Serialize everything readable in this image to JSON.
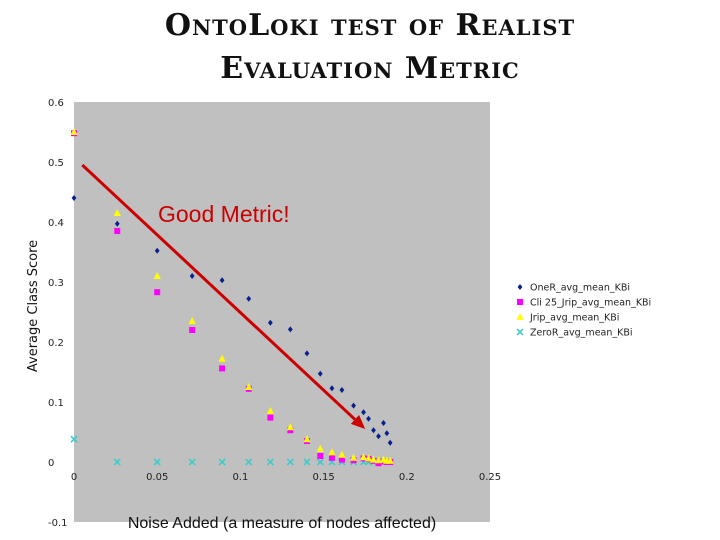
{
  "title": {
    "line1": "OntoLoki test of Realist",
    "line2": "Evaluation Metric"
  },
  "chart_data": {
    "type": "scatter",
    "title": "OntoLoki test of Realist Evaluation Metric",
    "xlabel": "Noise Added (a measure of nodes affected)",
    "ylabel": "Average Class Score",
    "xlim": [
      0,
      0.25
    ],
    "ylim": [
      -0.1,
      0.6
    ],
    "x_ticks": [
      "0",
      "0.05",
      "0.1",
      "0.15",
      "0.2",
      "0.25"
    ],
    "y_ticks": [
      "-0.1",
      "0",
      "0.1",
      "0.2",
      "0.3",
      "0.4",
      "0.5",
      "0.6"
    ],
    "grid": false,
    "plot_background": "#c0c0c0",
    "legend_position": "right",
    "series": [
      {
        "name": "OneR_avg_mean_KBi",
        "marker": "diamond",
        "color": "#0a1f8f",
        "points": [
          [
            0,
            0.44
          ],
          [
            0.026,
            0.397
          ],
          [
            0.05,
            0.352
          ],
          [
            0.071,
            0.31
          ],
          [
            0.089,
            0.303
          ],
          [
            0.105,
            0.272
          ],
          [
            0.118,
            0.232
          ],
          [
            0.13,
            0.221
          ],
          [
            0.14,
            0.181
          ],
          [
            0.148,
            0.147
          ],
          [
            0.155,
            0.123
          ],
          [
            0.161,
            0.12
          ],
          [
            0.168,
            0.094
          ],
          [
            0.174,
            0.083
          ],
          [
            0.177,
            0.072
          ],
          [
            0.18,
            0.053
          ],
          [
            0.183,
            0.043
          ],
          [
            0.186,
            0.065
          ],
          [
            0.188,
            0.048
          ],
          [
            0.19,
            0.032
          ]
        ]
      },
      {
        "name": "Cli 25_Jrip_avg_mean_KBi",
        "marker": "square",
        "color": "#ff00ff",
        "points": [
          [
            0,
            0.548
          ],
          [
            0.026,
            0.385
          ],
          [
            0.05,
            0.283
          ],
          [
            0.071,
            0.22
          ],
          [
            0.089,
            0.156
          ],
          [
            0.105,
            0.122
          ],
          [
            0.118,
            0.074
          ],
          [
            0.13,
            0.053
          ],
          [
            0.14,
            0.035
          ],
          [
            0.148,
            0.01
          ],
          [
            0.155,
            0.007
          ],
          [
            0.161,
            0.004
          ],
          [
            0.168,
            0.003
          ],
          [
            0.174,
            0.006
          ],
          [
            0.177,
            0.005
          ],
          [
            0.18,
            0.002
          ],
          [
            0.183,
            -0.002
          ],
          [
            0.186,
            0.001
          ],
          [
            0.188,
            0.0
          ],
          [
            0.19,
            0.0
          ]
        ]
      },
      {
        "name": "Jrip_avg_mean_KBi",
        "marker": "triangle",
        "color": "#ffff00",
        "points": [
          [
            0,
            0.55
          ],
          [
            0.026,
            0.415
          ],
          [
            0.05,
            0.31
          ],
          [
            0.071,
            0.235
          ],
          [
            0.089,
            0.172
          ],
          [
            0.105,
            0.125
          ],
          [
            0.118,
            0.085
          ],
          [
            0.13,
            0.058
          ],
          [
            0.14,
            0.038
          ],
          [
            0.148,
            0.022
          ],
          [
            0.155,
            0.016
          ],
          [
            0.161,
            0.012
          ],
          [
            0.168,
            0.007
          ],
          [
            0.174,
            0.008
          ],
          [
            0.177,
            0.006
          ],
          [
            0.18,
            0.004
          ],
          [
            0.183,
            0.003
          ],
          [
            0.186,
            0.004
          ],
          [
            0.188,
            0.002
          ],
          [
            0.19,
            0.002
          ]
        ]
      },
      {
        "name": "ZeroR_avg_mean_KBi",
        "marker": "x",
        "color": "#33cccc",
        "points": [
          [
            0,
            0.038
          ],
          [
            0.026,
            0.0
          ],
          [
            0.05,
            0.0
          ],
          [
            0.071,
            0.0
          ],
          [
            0.089,
            0.0
          ],
          [
            0.105,
            0.0
          ],
          [
            0.118,
            0.0
          ],
          [
            0.13,
            0.0
          ],
          [
            0.14,
            0.0
          ],
          [
            0.148,
            0.0
          ],
          [
            0.155,
            0.0
          ],
          [
            0.161,
            0.0
          ],
          [
            0.168,
            0.0
          ],
          [
            0.174,
            0.0
          ],
          [
            0.177,
            0.0
          ],
          [
            0.18,
            0.0
          ],
          [
            0.183,
            0.0
          ],
          [
            0.186,
            0.0
          ],
          [
            0.188,
            0.0
          ],
          [
            0.19,
            0.0
          ]
        ]
      }
    ],
    "annotation": {
      "text": "Good Metric!",
      "color": "#cc0000",
      "arrow_from": [
        0.005,
        0.495
      ],
      "arrow_to": [
        0.175,
        0.055
      ]
    }
  }
}
